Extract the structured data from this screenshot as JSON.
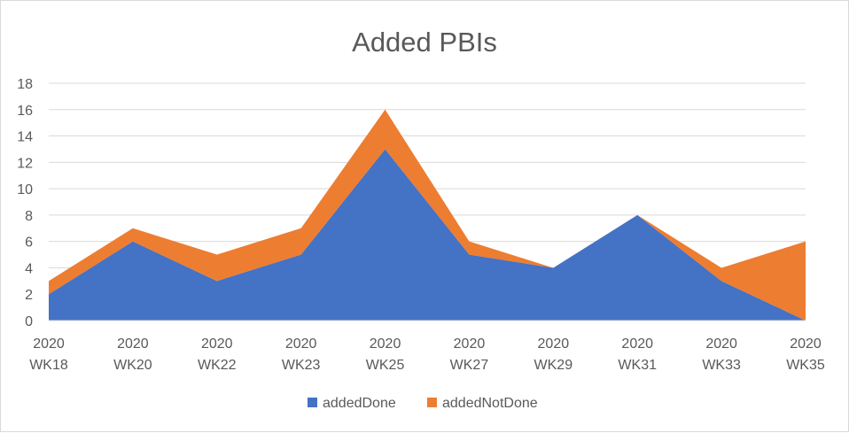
{
  "chart_data": {
    "type": "area",
    "stacked": true,
    "title": "Added PBIs",
    "xlabel": "",
    "ylabel": "",
    "categories": [
      [
        "2020",
        "WK18"
      ],
      [
        "2020",
        "WK20"
      ],
      [
        "2020",
        "WK22"
      ],
      [
        "2020",
        "WK23"
      ],
      [
        "2020",
        "WK25"
      ],
      [
        "2020",
        "WK27"
      ],
      [
        "2020",
        "WK29"
      ],
      [
        "2020",
        "WK31"
      ],
      [
        "2020",
        "WK33"
      ],
      [
        "2020",
        "WK35"
      ]
    ],
    "series": [
      {
        "name": "addedDone",
        "color": "#4472c4",
        "values": [
          2,
          6,
          3,
          5,
          13,
          5,
          4,
          8,
          3,
          0
        ]
      },
      {
        "name": "addedNotDone",
        "color": "#ed7d31",
        "values": [
          1,
          1,
          2,
          2,
          3,
          1,
          0,
          0,
          1,
          6
        ]
      }
    ],
    "ylim": [
      0,
      18
    ],
    "yticks": [
      0,
      2,
      4,
      6,
      8,
      10,
      12,
      14,
      16,
      18
    ],
    "grid": true,
    "legend_position": "bottom"
  }
}
